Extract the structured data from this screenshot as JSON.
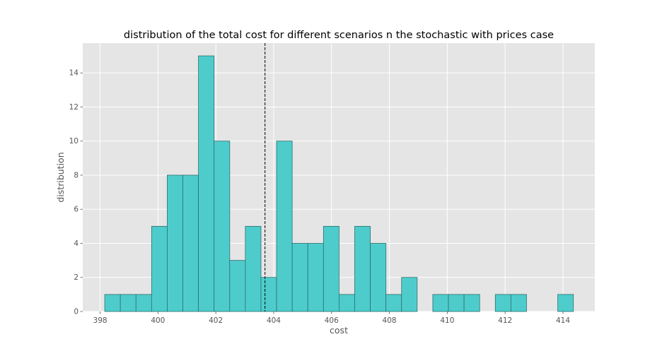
{
  "chart_data": {
    "type": "bar",
    "title": "distribution of the total cost for different scenarios n the stochastic with prices case",
    "xlabel": "cost",
    "ylabel": "distribution",
    "xlim": [
      397.4,
      415.1
    ],
    "ylim": [
      0,
      15.75
    ],
    "xticks": [
      398,
      400,
      402,
      404,
      406,
      408,
      410,
      412,
      414
    ],
    "yticks": [
      0,
      2,
      4,
      6,
      8,
      10,
      12,
      14
    ],
    "bin_width": 0.54,
    "bins": [
      {
        "x0": 398.16,
        "count": 1
      },
      {
        "x0": 398.7,
        "count": 1
      },
      {
        "x0": 399.24,
        "count": 1
      },
      {
        "x0": 399.78,
        "count": 5
      },
      {
        "x0": 400.32,
        "count": 8
      },
      {
        "x0": 400.86,
        "count": 8
      },
      {
        "x0": 401.4,
        "count": 15
      },
      {
        "x0": 401.94,
        "count": 10
      },
      {
        "x0": 402.48,
        "count": 3
      },
      {
        "x0": 403.02,
        "count": 5
      },
      {
        "x0": 403.56,
        "count": 2
      },
      {
        "x0": 404.1,
        "count": 10
      },
      {
        "x0": 404.64,
        "count": 4
      },
      {
        "x0": 405.18,
        "count": 4
      },
      {
        "x0": 405.72,
        "count": 5
      },
      {
        "x0": 406.26,
        "count": 1
      },
      {
        "x0": 406.8,
        "count": 5
      },
      {
        "x0": 407.34,
        "count": 4
      },
      {
        "x0": 407.88,
        "count": 1
      },
      {
        "x0": 408.42,
        "count": 2
      },
      {
        "x0": 408.96,
        "count": 0
      },
      {
        "x0": 409.5,
        "count": 1
      },
      {
        "x0": 410.04,
        "count": 1
      },
      {
        "x0": 410.58,
        "count": 1
      },
      {
        "x0": 411.12,
        "count": 0
      },
      {
        "x0": 411.66,
        "count": 1
      },
      {
        "x0": 412.2,
        "count": 1
      },
      {
        "x0": 412.74,
        "count": 0
      },
      {
        "x0": 413.28,
        "count": 0
      },
      {
        "x0": 413.82,
        "count": 1
      }
    ],
    "mean_line": 403.7,
    "grid": true,
    "colors": {
      "bar_fill": "#4ECCCC",
      "bar_edge": "#2F6F6F",
      "axes_bg": "#E5E5E5",
      "grid": "#FFFFFF",
      "mean_line": "#000000"
    }
  }
}
